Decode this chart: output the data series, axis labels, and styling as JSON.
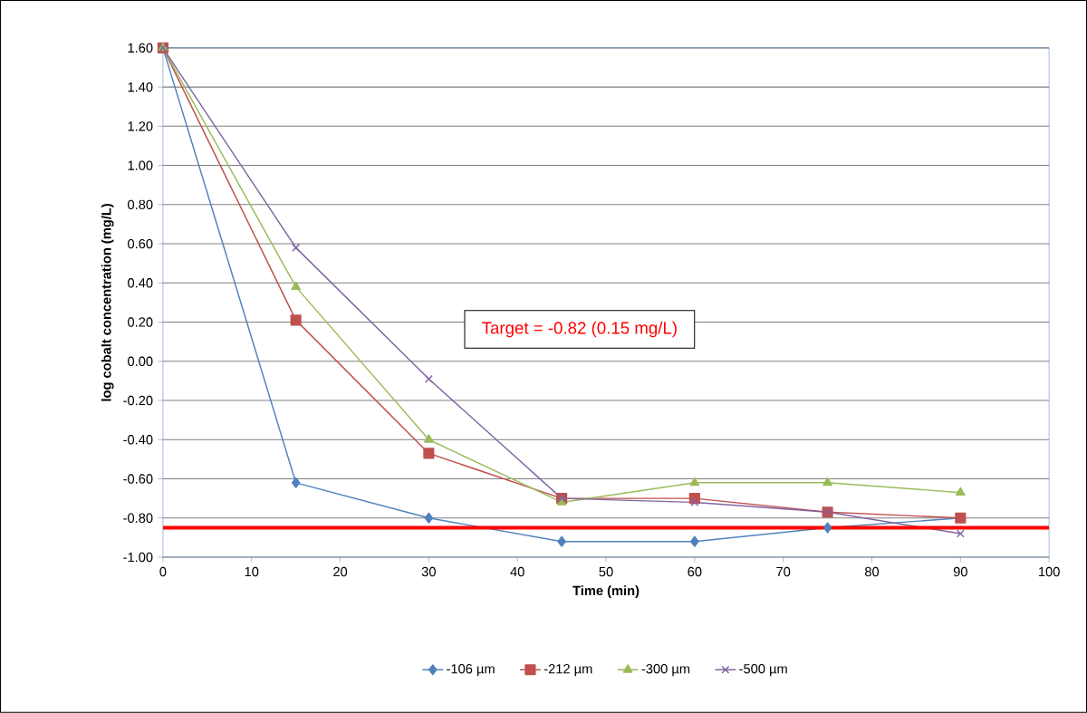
{
  "chart_data": {
    "type": "line",
    "xlabel": "Time (min)",
    "ylabel": "log cobalt concentration (mg/L)",
    "x": [
      0,
      15,
      30,
      45,
      60,
      75,
      90
    ],
    "series": [
      {
        "name": "-106 µm",
        "color": "#4f81bd",
        "marker": "diamond",
        "values": [
          1.6,
          -0.62,
          -0.8,
          -0.92,
          -0.92,
          -0.85,
          -0.8
        ]
      },
      {
        "name": "-212 µm",
        "color": "#c0504d",
        "marker": "square",
        "values": [
          1.6,
          0.21,
          -0.47,
          -0.7,
          -0.7,
          -0.77,
          -0.8
        ]
      },
      {
        "name": "-300 µm",
        "color": "#9bbb59",
        "marker": "triangle",
        "values": [
          1.6,
          0.38,
          -0.4,
          -0.72,
          -0.62,
          -0.62,
          -0.67
        ]
      },
      {
        "name": "-500 µm",
        "color": "#8064a2",
        "marker": "cross",
        "values": [
          1.6,
          0.58,
          -0.09,
          -0.7,
          -0.72,
          -0.77,
          -0.88
        ]
      }
    ],
    "xlim": [
      0,
      100
    ],
    "xticks": [
      0,
      10,
      20,
      30,
      40,
      50,
      60,
      70,
      80,
      90,
      100
    ],
    "ylim": [
      -1.0,
      1.6
    ],
    "yticks": [
      {
        "value": -1.0,
        "label": "-1.00"
      },
      {
        "value": -0.8,
        "label": "-0.80"
      },
      {
        "value": -0.6,
        "label": "-0.60"
      },
      {
        "value": -0.4,
        "label": "-0.40"
      },
      {
        "value": -0.2,
        "label": "-0.20"
      },
      {
        "value": 0,
        "label": "0.00"
      },
      {
        "value": 0.2,
        "label": "0.20"
      },
      {
        "value": 0.4,
        "label": "0.40"
      },
      {
        "value": 0.6,
        "label": "0.60"
      },
      {
        "value": 0.8,
        "label": "0.80"
      },
      {
        "value": 1.0,
        "label": "1.00"
      },
      {
        "value": 1.2,
        "label": "1.20"
      },
      {
        "value": 1.4,
        "label": "1.40"
      },
      {
        "value": 1.6,
        "label": "1.60"
      }
    ],
    "ref_lines": [
      {
        "axis": "y",
        "value": -0.85,
        "color": "#ff0000"
      }
    ],
    "annotations": [
      "Target = -0.82 (0.15 mg/L)"
    ],
    "grid": "y",
    "legend": "bottom",
    "line_style": "solid"
  }
}
